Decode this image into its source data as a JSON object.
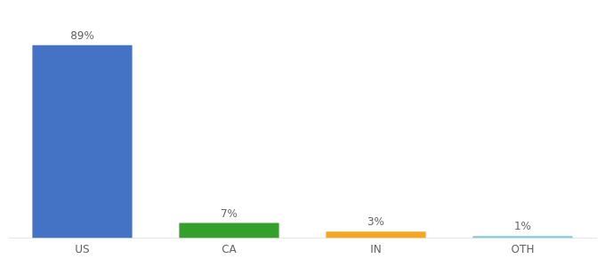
{
  "chart_data": {
    "type": "bar",
    "categories": [
      "US",
      "CA",
      "IN",
      "OTH"
    ],
    "values": [
      89,
      7,
      3,
      1
    ],
    "value_labels": [
      "89%",
      "7%",
      "3%",
      "1%"
    ],
    "colors": [
      "#4472C4",
      "#33A02C",
      "#F5A623",
      "#7EC8E3"
    ],
    "ylim": [
      0,
      100
    ],
    "data_labels": true,
    "tick_labels": "x",
    "grid": false
  }
}
